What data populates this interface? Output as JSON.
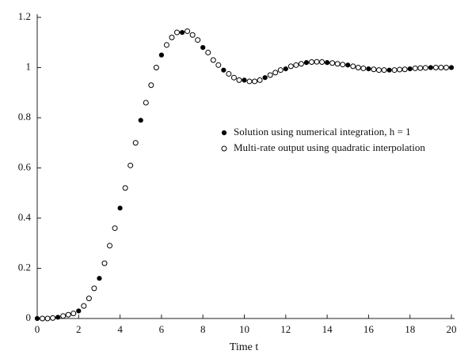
{
  "chart_data": {
    "type": "scatter",
    "xlabel": "Time t",
    "xlim": [
      0,
      20
    ],
    "xticks": [
      0,
      2,
      4,
      6,
      8,
      10,
      12,
      14,
      16,
      18,
      20
    ],
    "ylim": [
      0,
      1.2
    ],
    "yticks": [
      0,
      0.2,
      0.4,
      0.6,
      0.8,
      1,
      1.2
    ],
    "series": [
      {
        "name": "Solution using numerical integration, h = 1",
        "color": "#000000",
        "marker": "filled",
        "x": [
          0,
          1,
          2,
          3,
          4,
          5,
          6,
          7,
          8,
          9,
          10,
          11,
          12,
          13,
          14,
          15,
          16,
          17,
          18,
          19,
          20
        ],
        "values": [
          0,
          0.005,
          0.03,
          0.16,
          0.44,
          0.79,
          1.05,
          1.14,
          1.08,
          0.99,
          0.95,
          0.96,
          0.995,
          1.02,
          1.02,
          1.01,
          0.995,
          0.99,
          0.995,
          1.0,
          1.0
        ]
      },
      {
        "name": "Multi-rate output using quadratic interpolation",
        "color": "#000000",
        "marker": "open",
        "x": [
          0.25,
          0.5,
          0.75,
          1.25,
          1.5,
          1.75,
          2.25,
          2.5,
          2.75,
          3.25,
          3.5,
          3.75,
          4.25,
          4.5,
          4.75,
          5.25,
          5.5,
          5.75,
          6.25,
          6.5,
          6.75,
          7.25,
          7.5,
          7.75,
          8.25,
          8.5,
          8.75,
          9.25,
          9.5,
          9.75,
          10.25,
          10.5,
          10.75,
          11.25,
          11.5,
          11.75,
          12.25,
          12.5,
          12.75,
          13.25,
          13.5,
          13.75,
          14.25,
          14.5,
          14.75,
          15.25,
          15.5,
          15.75,
          16.25,
          16.5,
          16.75,
          17.25,
          17.5,
          17.75,
          18.25,
          18.5,
          18.75,
          19.25,
          19.5,
          19.75
        ],
        "values": [
          0,
          0,
          0.002,
          0.01,
          0.015,
          0.02,
          0.05,
          0.08,
          0.12,
          0.22,
          0.29,
          0.36,
          0.52,
          0.61,
          0.7,
          0.86,
          0.93,
          1.0,
          1.09,
          1.12,
          1.14,
          1.145,
          1.13,
          1.11,
          1.06,
          1.03,
          1.01,
          0.975,
          0.96,
          0.95,
          0.945,
          0.945,
          0.95,
          0.97,
          0.98,
          0.99,
          1.005,
          1.01,
          1.015,
          1.022,
          1.023,
          1.022,
          1.018,
          1.015,
          1.012,
          1.005,
          1.0,
          0.997,
          0.993,
          0.99,
          0.99,
          0.99,
          0.992,
          0.993,
          0.997,
          0.998,
          0.999,
          1.0,
          1.0,
          1.0
        ]
      }
    ]
  }
}
